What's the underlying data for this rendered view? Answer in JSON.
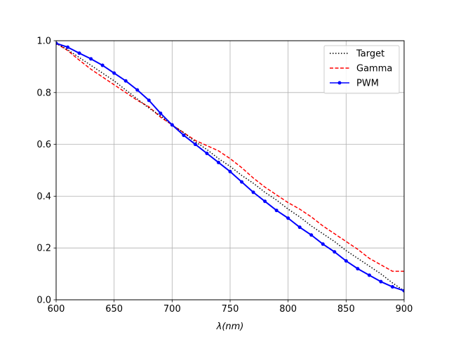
{
  "chart_data": {
    "type": "line",
    "title": "",
    "xlabel_var": "λ",
    "xlabel_unit": "(nm)",
    "ylabel": "",
    "xlim": [
      600,
      900
    ],
    "ylim": [
      0.0,
      1.0
    ],
    "grid": true,
    "legend_position": "top-right",
    "xticks": [
      "600",
      "650",
      "700",
      "750",
      "800",
      "850",
      "900"
    ],
    "yticks": [
      "0.0",
      "0.2",
      "0.4",
      "0.6",
      "0.8",
      "1.0"
    ],
    "x": [
      600,
      610,
      620,
      630,
      640,
      650,
      660,
      670,
      680,
      690,
      700,
      710,
      720,
      730,
      740,
      750,
      760,
      770,
      780,
      790,
      800,
      810,
      820,
      830,
      840,
      850,
      860,
      870,
      880,
      890,
      900
    ],
    "series": [
      {
        "name": "Target",
        "color": "#000000",
        "style": "dotted",
        "values": [
          0.99,
          0.965,
          0.935,
          0.905,
          0.875,
          0.845,
          0.81,
          0.775,
          0.74,
          0.71,
          0.675,
          0.645,
          0.61,
          0.58,
          0.545,
          0.515,
          0.48,
          0.45,
          0.415,
          0.385,
          0.35,
          0.32,
          0.285,
          0.255,
          0.225,
          0.19,
          0.16,
          0.13,
          0.1,
          0.065,
          0.035
        ]
      },
      {
        "name": "Gamma",
        "color": "#ff0000",
        "style": "dashed",
        "values": [
          0.99,
          0.962,
          0.925,
          0.89,
          0.86,
          0.83,
          0.8,
          0.77,
          0.745,
          0.705,
          0.675,
          0.645,
          0.615,
          0.595,
          0.575,
          0.545,
          0.51,
          0.47,
          0.435,
          0.405,
          0.375,
          0.35,
          0.32,
          0.285,
          0.255,
          0.225,
          0.195,
          0.16,
          0.135,
          0.11,
          0.11
        ]
      },
      {
        "name": "PWM",
        "color": "#0000ff",
        "style": "solid-marker",
        "values": [
          0.99,
          0.975,
          0.952,
          0.93,
          0.905,
          0.875,
          0.845,
          0.81,
          0.77,
          0.72,
          0.675,
          0.635,
          0.6,
          0.565,
          0.53,
          0.495,
          0.455,
          0.415,
          0.38,
          0.345,
          0.315,
          0.28,
          0.25,
          0.215,
          0.185,
          0.15,
          0.12,
          0.095,
          0.07,
          0.05,
          0.035
        ]
      }
    ]
  }
}
